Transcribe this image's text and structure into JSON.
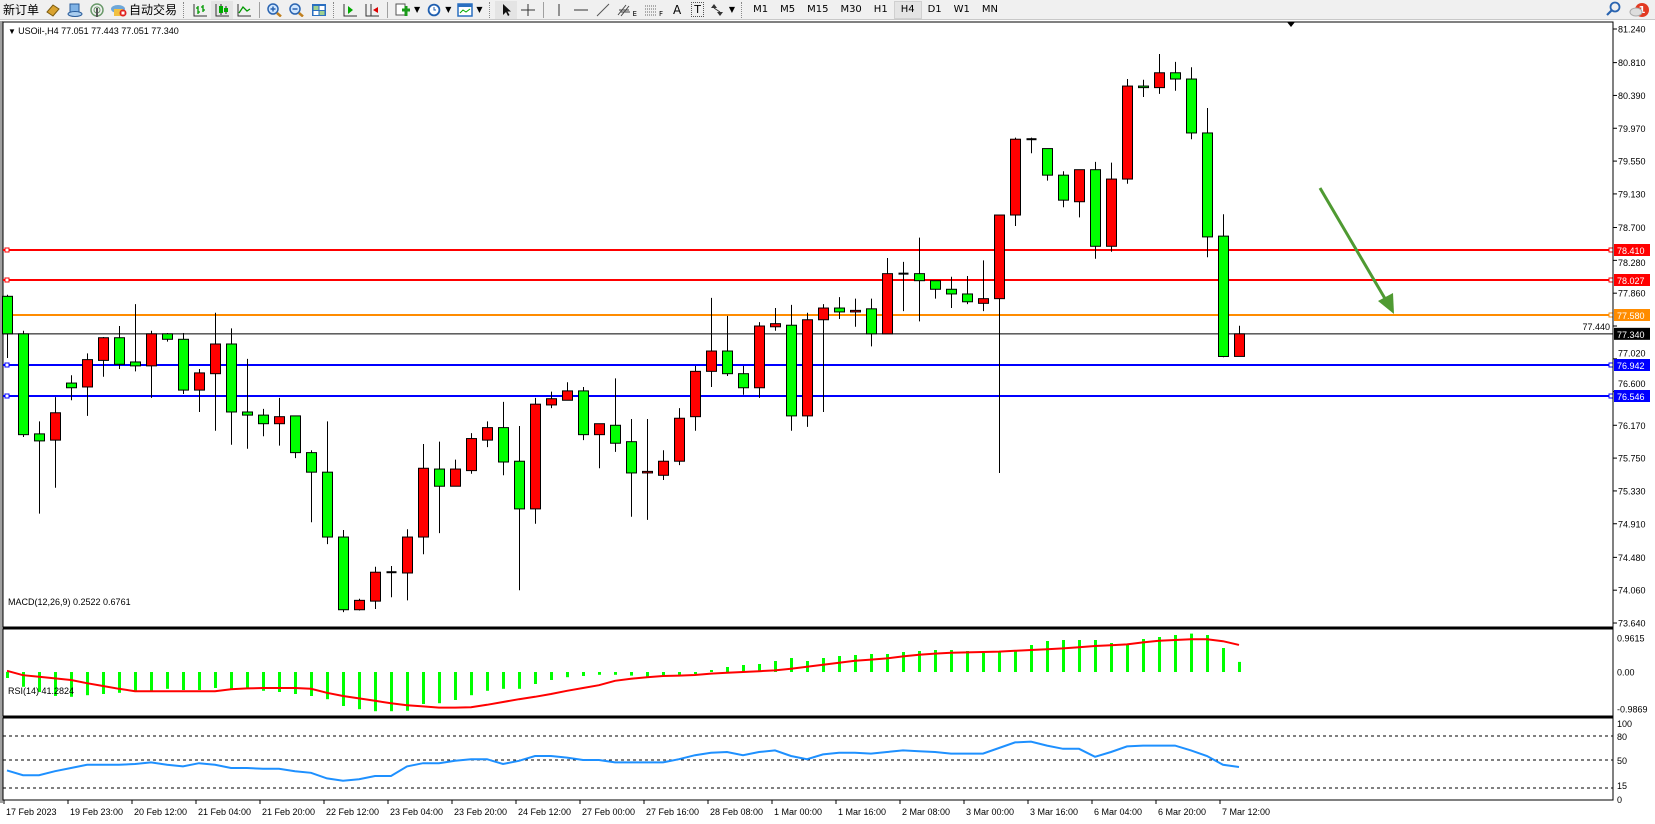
{
  "toolbar": {
    "new_order": "新订单",
    "auto_trading": "自动交易",
    "text_tool": "A",
    "label_tool": "T",
    "fibo_e_suffix": "E",
    "fibo_f_suffix": "F",
    "timeframes": [
      "M1",
      "M5",
      "M15",
      "M30",
      "H1",
      "H4",
      "D1",
      "W1",
      "MN"
    ],
    "active_timeframe": "H4",
    "notification_count": "1",
    "icons": [
      "metaeditor-icon",
      "navigator-icon",
      "signals-icon",
      "bar-chart-icon",
      "candlestick-icon",
      "line-chart-icon",
      "zoom-in-icon",
      "zoom-out-icon",
      "tile-windows-icon",
      "auto-scroll-icon",
      "chart-shift-icon",
      "indicators-icon",
      "periods-icon",
      "templates-icon",
      "cursor-icon",
      "crosshair-icon",
      "vertical-line-icon",
      "horizontal-line-icon",
      "trendline-icon",
      "fibo-expansion-icon",
      "fibo-fan-icon",
      "search-icon",
      "chat-icon"
    ]
  },
  "chart": {
    "symbol_header": "USOil-,H4  77.051 77.443 77.051 77.340",
    "colors": {
      "bull": "#ff0000",
      "bear": "#00ff00",
      "macd_hist": "#00ff00",
      "macd_signal": "#ff0000",
      "rsi": "#1e90ff",
      "arrow": "#4f9a32"
    },
    "price_ticks": [
      "81.240",
      "80.810",
      "80.390",
      "79.970",
      "79.550",
      "79.130",
      "78.700",
      "78.280",
      "77.860",
      "77.440",
      "77.020",
      "76.600",
      "76.170",
      "75.750",
      "75.330",
      "74.910",
      "74.480",
      "74.060",
      "73.640"
    ],
    "levels": [
      {
        "price": "78.410",
        "color": "#ff0000"
      },
      {
        "price": "78.027",
        "color": "#ff0000"
      },
      {
        "price": "77.580",
        "color": "#ff8c00"
      },
      {
        "price": "76.942",
        "color": "#0000ff"
      },
      {
        "price": "76.546",
        "color": "#0000ff"
      }
    ],
    "current_price": "77.340",
    "time_labels": [
      "17 Feb 2023",
      "19 Feb 23:00",
      "20 Feb 12:00",
      "21 Feb 04:00",
      "21 Feb 20:00",
      "22 Feb 12:00",
      "23 Feb 04:00",
      "23 Feb 20:00",
      "24 Feb 12:00",
      "27 Feb 00:00",
      "27 Feb 16:00",
      "28 Feb 08:00",
      "1 Mar 00:00",
      "1 Mar 16:00",
      "2 Mar 08:00",
      "3 Mar 00:00",
      "3 Mar 16:00",
      "6 Mar 04:00",
      "6 Mar 20:00",
      "7 Mar 12:00"
    ],
    "ohlc": [
      [
        77.82,
        77.84,
        77.03,
        77.34
      ],
      [
        77.34,
        77.38,
        76.02,
        76.05
      ],
      [
        76.06,
        76.22,
        75.04,
        75.97
      ],
      [
        75.98,
        76.53,
        75.37,
        76.33
      ],
      [
        76.71,
        76.81,
        76.49,
        76.65
      ],
      [
        76.66,
        77.09,
        76.29,
        77.01
      ],
      [
        77.0,
        77.3,
        76.79,
        77.29
      ],
      [
        77.29,
        77.44,
        76.89,
        76.95
      ],
      [
        76.98,
        77.72,
        76.86,
        76.93
      ],
      [
        76.93,
        77.38,
        76.52,
        77.34
      ],
      [
        77.34,
        77.35,
        77.24,
        77.27
      ],
      [
        77.27,
        77.35,
        76.57,
        76.62
      ],
      [
        76.62,
        76.89,
        76.34,
        76.84
      ],
      [
        76.83,
        77.61,
        76.1,
        77.21
      ],
      [
        77.21,
        77.41,
        75.92,
        76.34
      ],
      [
        76.34,
        77.02,
        75.87,
        76.3
      ],
      [
        76.3,
        76.38,
        76.03,
        76.19
      ],
      [
        76.19,
        76.52,
        75.91,
        76.28
      ],
      [
        76.29,
        76.29,
        75.75,
        75.82
      ],
      [
        75.82,
        75.85,
        74.93,
        75.57
      ],
      [
        75.57,
        76.22,
        74.65,
        74.74
      ],
      [
        74.74,
        74.83,
        73.78,
        73.81
      ],
      [
        73.81,
        73.95,
        73.8,
        73.93
      ],
      [
        73.92,
        74.36,
        73.82,
        74.29
      ],
      [
        74.28,
        74.37,
        73.97,
        74.29
      ],
      [
        74.28,
        74.84,
        73.93,
        74.74
      ],
      [
        74.74,
        75.93,
        74.52,
        75.62
      ],
      [
        75.61,
        75.96,
        74.79,
        75.39
      ],
      [
        75.39,
        75.73,
        75.39,
        75.61
      ],
      [
        75.59,
        76.07,
        75.55,
        76.0
      ],
      [
        75.98,
        76.22,
        75.89,
        76.14
      ],
      [
        76.14,
        76.47,
        75.53,
        75.7
      ],
      [
        75.71,
        76.16,
        74.06,
        75.1
      ],
      [
        75.1,
        76.52,
        74.91,
        76.44
      ],
      [
        76.43,
        76.6,
        76.39,
        76.51
      ],
      [
        76.49,
        76.72,
        76.49,
        76.61
      ],
      [
        76.61,
        76.66,
        75.98,
        76.05
      ],
      [
        76.05,
        76.19,
        75.62,
        76.19
      ],
      [
        76.17,
        76.77,
        75.83,
        75.94
      ],
      [
        75.96,
        76.25,
        75.0,
        75.56
      ],
      [
        75.56,
        76.25,
        74.96,
        75.58
      ],
      [
        75.53,
        75.85,
        75.47,
        75.71
      ],
      [
        75.71,
        76.39,
        75.66,
        76.26
      ],
      [
        76.28,
        76.93,
        76.1,
        76.86
      ],
      [
        76.86,
        77.8,
        76.66,
        77.12
      ],
      [
        77.12,
        77.57,
        76.8,
        76.83
      ],
      [
        76.83,
        76.93,
        76.56,
        76.65
      ],
      [
        76.65,
        77.49,
        76.52,
        77.44
      ],
      [
        77.43,
        77.67,
        77.38,
        77.47
      ],
      [
        77.45,
        77.71,
        76.1,
        76.29
      ],
      [
        76.29,
        77.61,
        76.15,
        77.52
      ],
      [
        77.52,
        77.72,
        76.34,
        77.67
      ],
      [
        77.67,
        77.81,
        77.53,
        77.62
      ],
      [
        77.62,
        77.79,
        77.43,
        77.64
      ],
      [
        77.66,
        77.79,
        77.18,
        77.34
      ],
      [
        77.34,
        78.31,
        77.34,
        78.11
      ],
      [
        78.11,
        78.26,
        77.63,
        78.1
      ],
      [
        78.11,
        78.57,
        77.5,
        78.02
      ],
      [
        78.02,
        78.02,
        77.79,
        77.91
      ],
      [
        77.91,
        78.07,
        77.67,
        77.85
      ],
      [
        77.85,
        78.08,
        77.72,
        77.75
      ],
      [
        77.73,
        78.28,
        77.63,
        77.79
      ],
      [
        77.79,
        78.86,
        75.56,
        78.86
      ],
      [
        78.86,
        79.85,
        78.72,
        79.83
      ],
      [
        79.83,
        79.85,
        79.65,
        79.82
      ],
      [
        79.71,
        79.71,
        79.3,
        79.37
      ],
      [
        79.37,
        79.42,
        78.96,
        79.05
      ],
      [
        79.03,
        79.44,
        78.83,
        79.44
      ],
      [
        79.44,
        79.54,
        78.3,
        78.46
      ],
      [
        78.46,
        79.53,
        78.39,
        79.32
      ],
      [
        79.32,
        80.6,
        79.26,
        80.51
      ],
      [
        80.51,
        80.59,
        80.37,
        80.49
      ],
      [
        80.49,
        80.92,
        80.41,
        80.68
      ],
      [
        80.68,
        80.82,
        80.45,
        80.6
      ],
      [
        80.6,
        80.75,
        79.83,
        79.91
      ],
      [
        79.91,
        80.23,
        78.32,
        78.58
      ],
      [
        78.59,
        78.87,
        77.04,
        77.05
      ],
      [
        77.051,
        77.443,
        77.051,
        77.34
      ]
    ]
  },
  "macd": {
    "label": "MACD(12,26,9) 0.2522 0.6761",
    "axis_labels": [
      "0.9615",
      "0.00",
      "-0.9869"
    ],
    "histogram": [
      -0.15,
      -0.37,
      -0.5,
      -0.6,
      -0.62,
      -0.58,
      -0.55,
      -0.52,
      -0.47,
      -0.47,
      -0.42,
      -0.45,
      -0.45,
      -0.4,
      -0.45,
      -0.42,
      -0.47,
      -0.5,
      -0.55,
      -0.6,
      -0.68,
      -0.85,
      -0.93,
      -0.98,
      -0.98,
      -0.97,
      -0.8,
      -0.78,
      -0.7,
      -0.58,
      -0.47,
      -0.42,
      -0.42,
      -0.3,
      -0.2,
      -0.13,
      -0.1,
      -0.07,
      -0.07,
      -0.09,
      -0.13,
      -0.08,
      -0.07,
      -0.05,
      0.05,
      0.125,
      0.175,
      0.2,
      0.275,
      0.35,
      0.275,
      0.35,
      0.4,
      0.425,
      0.45,
      0.45,
      0.5,
      0.525,
      0.55,
      0.55,
      0.525,
      0.475,
      0.5,
      0.55,
      0.675,
      0.775,
      0.8,
      0.8,
      0.8,
      0.725,
      0.7,
      0.825,
      0.875,
      0.925,
      0.96,
      0.925,
      0.6,
      0.2522
    ],
    "signal": [
      0.03,
      -0.08,
      -0.12,
      -0.16,
      -0.2,
      -0.28,
      -0.35,
      -0.42,
      -0.48,
      -0.48,
      -0.48,
      -0.48,
      -0.48,
      -0.48,
      -0.43,
      -0.41,
      -0.4,
      -0.4,
      -0.4,
      -0.42,
      -0.52,
      -0.6,
      -0.66,
      -0.72,
      -0.78,
      -0.83,
      -0.86,
      -0.89,
      -0.89,
      -0.88,
      -0.82,
      -0.75,
      -0.68,
      -0.62,
      -0.55,
      -0.47,
      -0.4,
      -0.33,
      -0.22,
      -0.17,
      -0.13,
      -0.1,
      -0.09,
      -0.075,
      -0.04,
      -0.02,
      0,
      0.02,
      0.04,
      0.08,
      0.13,
      0.18,
      0.23,
      0.28,
      0.31,
      0.34,
      0.39,
      0.43,
      0.46,
      0.48,
      0.49,
      0.5,
      0.51,
      0.53,
      0.55,
      0.57,
      0.59,
      0.62,
      0.65,
      0.67,
      0.69,
      0.74,
      0.78,
      0.8,
      0.82,
      0.82,
      0.77,
      0.6761
    ]
  },
  "rsi": {
    "label": "RSI(14) 41.2824",
    "axis_labels": [
      "100",
      "80",
      "50",
      "15",
      "0"
    ],
    "levels": [
      80,
      50,
      15
    ],
    "values": [
      37,
      31,
      31,
      36,
      40,
      44,
      44,
      44,
      45,
      47,
      44,
      42,
      46,
      44,
      40,
      40,
      39,
      39,
      36,
      34,
      27,
      24,
      26,
      30,
      30,
      42,
      46,
      46,
      49,
      51,
      51,
      45,
      49,
      55,
      55,
      53,
      50,
      50,
      47,
      47,
      47,
      47,
      51,
      56,
      59,
      60,
      56,
      60,
      62,
      55,
      51,
      57,
      59,
      59,
      58,
      60,
      62,
      61,
      60,
      58,
      58,
      58,
      65,
      72,
      73,
      68,
      64,
      64,
      54,
      60,
      67,
      68,
      68,
      68,
      62,
      55,
      44,
      41.28
    ]
  }
}
